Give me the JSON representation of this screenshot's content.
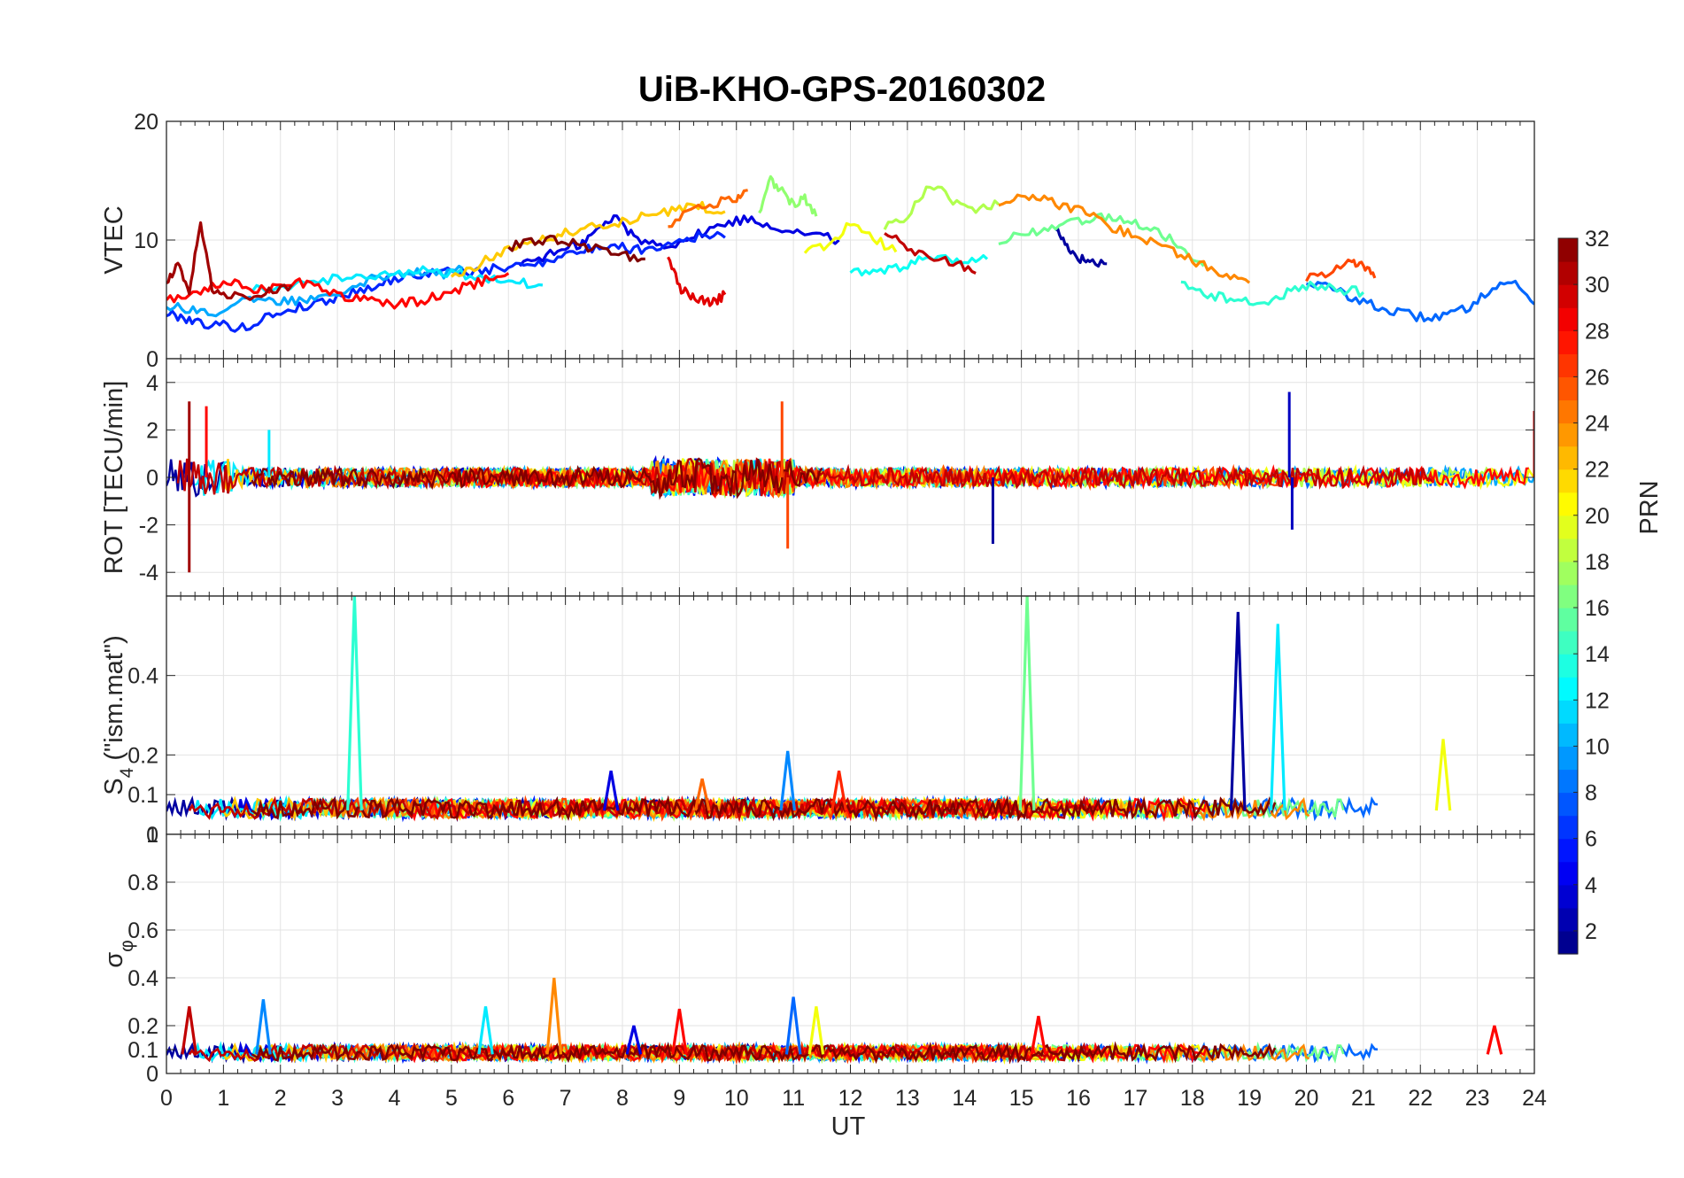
{
  "chart_data": {
    "type": "line",
    "title": "UiB-KHO-GPS-20160302",
    "x": {
      "label": "UT",
      "range": [
        0,
        24
      ],
      "ticks": [
        0,
        1,
        2,
        3,
        4,
        5,
        6,
        7,
        8,
        9,
        10,
        11,
        12,
        13,
        14,
        15,
        16,
        17,
        18,
        19,
        20,
        21,
        22,
        23,
        24
      ]
    },
    "panels": [
      {
        "name": "vtec",
        "ylabel": "VTEC",
        "ylim": [
          0,
          20
        ],
        "yticks": [
          0,
          10,
          20
        ],
        "grid": true,
        "series": [
          {
            "prn": 2,
            "x": [
              15.6,
              15.8,
              16.0,
              16.2,
              16.5
            ],
            "y": [
              11,
              9.5,
              8.5,
              8.2,
              8.0
            ]
          },
          {
            "prn": 4,
            "x": [
              6.2,
              6.6,
              7.0,
              7.3,
              7.6,
              7.9,
              8.2,
              8.6,
              9.0,
              9.4,
              9.8,
              10.2,
              10.6,
              11.0,
              11.4,
              11.8
            ],
            "y": [
              8.0,
              8.6,
              9.2,
              9.8,
              11.0,
              12.0,
              10.2,
              9.6,
              9.8,
              10.6,
              11.4,
              11.8,
              11.2,
              10.8,
              10.4,
              10.0
            ]
          },
          {
            "prn": 6,
            "x": [
              0.0,
              0.3,
              0.6,
              1.0,
              1.4,
              1.8,
              2.2,
              2.6,
              3.0,
              3.4,
              3.8,
              4.2,
              4.6,
              5.0,
              5.4,
              5.8,
              6.2,
              6.6,
              7.0,
              7.4,
              7.8,
              8.2,
              8.6,
              9.0,
              9.4,
              9.8
            ],
            "y": [
              3.8,
              3.5,
              3.0,
              2.8,
              2.6,
              3.6,
              4.2,
              4.6,
              5.2,
              5.8,
              6.4,
              7.0,
              7.2,
              7.4,
              7.2,
              7.6,
              7.8,
              8.2,
              8.8,
              9.2,
              9.6,
              9.2,
              9.4,
              10.0,
              10.4,
              10.2
            ]
          },
          {
            "prn": 8,
            "x": [
              20.0,
              20.4,
              20.8,
              21.2,
              21.6,
              22.0,
              22.4,
              22.8,
              23.2,
              23.6,
              24.0
            ],
            "y": [
              6.5,
              6.0,
              5.2,
              4.4,
              3.9,
              3.5,
              3.6,
              4.2,
              5.8,
              6.6,
              4.6
            ]
          },
          {
            "prn": 10,
            "x": [
              0.0,
              0.4,
              0.8,
              1.2,
              1.6,
              2.0,
              2.4,
              2.8,
              3.2,
              3.6,
              4.0,
              4.4,
              4.8,
              5.2
            ],
            "y": [
              4.5,
              4.2,
              3.8,
              4.6,
              5.0,
              4.8,
              5.0,
              5.4,
              6.0,
              6.8,
              7.2,
              7.4,
              7.0,
              7.6
            ]
          },
          {
            "prn": 12,
            "x": [
              1.5,
              2.0,
              2.5,
              3.0,
              3.5,
              4.0,
              4.5,
              5.0,
              5.5,
              5.8,
              6.2,
              6.6
            ],
            "y": [
              5.8,
              6.2,
              6.4,
              6.8,
              7.0,
              7.2,
              7.4,
              7.2,
              7.0,
              6.6,
              6.4,
              6.2
            ]
          },
          {
            "prn": 13,
            "x": [
              12.0,
              12.4,
              12.8,
              13.2,
              13.6,
              14.0,
              14.4
            ],
            "y": [
              7.4,
              7.2,
              7.6,
              8.2,
              8.4,
              8.0,
              8.4
            ]
          },
          {
            "prn": 14,
            "x": [
              17.8,
              18.2,
              18.6,
              19.0,
              19.4,
              19.8,
              20.2,
              20.6,
              21.0
            ],
            "y": [
              6.6,
              5.6,
              5.0,
              4.8,
              5.0,
              5.8,
              6.2,
              5.8,
              5.6
            ]
          },
          {
            "prn": 16,
            "x": [
              14.6,
              15.0,
              15.4,
              15.8,
              16.2,
              16.6,
              17.0,
              17.4,
              17.8,
              18.2
            ],
            "y": [
              9.8,
              10.4,
              11.0,
              11.6,
              11.8,
              12.0,
              11.6,
              10.6,
              9.6,
              7.8
            ]
          },
          {
            "prn": 17,
            "x": [
              10.4,
              10.6,
              10.8,
              11.0,
              11.2,
              11.4
            ],
            "y": [
              12.4,
              15.0,
              14.2,
              13.0,
              13.6,
              12.0
            ]
          },
          {
            "prn": 18,
            "x": [
              12.6,
              13.0,
              13.4,
              13.8,
              14.2,
              14.6
            ],
            "y": [
              11.0,
              12.0,
              14.8,
              13.4,
              12.4,
              13.0
            ]
          },
          {
            "prn": 20,
            "x": [
              11.2,
              11.6,
              12.0,
              12.4,
              12.8
            ],
            "y": [
              9.0,
              9.4,
              11.4,
              10.2,
              9.0
            ]
          },
          {
            "prn": 22,
            "x": [
              5.0,
              5.4,
              5.8,
              6.2,
              6.6,
              7.0,
              7.4,
              7.8,
              8.2,
              8.6,
              9.0,
              9.4,
              9.8
            ],
            "y": [
              7.0,
              7.8,
              8.8,
              9.6,
              10.2,
              10.6,
              11.0,
              11.4,
              11.8,
              12.2,
              12.6,
              12.8,
              12.4
            ]
          },
          {
            "prn": 24,
            "x": [
              14.6,
              15.0,
              15.4,
              15.8,
              16.2,
              16.6,
              17.0,
              17.4,
              17.8,
              18.2,
              18.6,
              19.0
            ],
            "y": [
              13.0,
              13.8,
              13.4,
              12.8,
              12.2,
              11.0,
              10.4,
              9.6,
              8.8,
              7.8,
              6.8,
              6.4
            ]
          },
          {
            "prn": 25,
            "x": [
              8.8,
              9.2,
              9.6,
              10.0,
              10.2
            ],
            "y": [
              11.2,
              12.4,
              13.0,
              13.6,
              14.2
            ]
          },
          {
            "prn": 26,
            "x": [
              20.0,
              20.4,
              20.8,
              21.0,
              21.2
            ],
            "y": [
              6.6,
              7.4,
              8.2,
              8.0,
              6.8
            ]
          },
          {
            "prn": 28,
            "x": [
              0.0,
              0.4,
              0.8,
              1.2,
              1.6,
              2.0,
              2.4,
              2.8,
              3.2,
              3.6,
              4.0,
              4.4,
              4.8,
              5.2,
              5.6,
              6.0
            ],
            "y": [
              5.0,
              5.4,
              6.2,
              6.6,
              5.8,
              6.0,
              6.4,
              5.6,
              5.2,
              5.0,
              4.6,
              4.8,
              5.4,
              6.0,
              6.6,
              7.2
            ]
          },
          {
            "prn": 29,
            "x": [
              8.8,
              9.0,
              9.2,
              9.4,
              9.6,
              9.8
            ],
            "y": [
              8.6,
              6.0,
              5.4,
              5.0,
              4.8,
              5.4
            ]
          },
          {
            "prn": 30,
            "x": [
              12.6,
              13.0,
              13.4,
              13.8,
              14.2
            ],
            "y": [
              10.6,
              9.4,
              8.6,
              8.2,
              7.2
            ]
          },
          {
            "prn": 31,
            "x": [
              0.0,
              0.2,
              0.4,
              0.6,
              0.8,
              1.0,
              1.4,
              1.8,
              2.2
            ],
            "y": [
              6.4,
              8.0,
              5.4,
              11.6,
              6.0,
              5.6,
              5.0,
              5.8,
              6.2
            ]
          },
          {
            "prn": 32,
            "x": [
              6.0,
              6.4,
              6.8,
              7.2,
              7.6,
              8.0,
              8.4
            ],
            "y": [
              9.4,
              9.8,
              10.0,
              9.6,
              9.2,
              8.8,
              8.4
            ]
          }
        ]
      },
      {
        "name": "rot",
        "ylabel": "ROT [TECU/min]",
        "ylim": [
          -5,
          5
        ],
        "yticks": [
          -4,
          -2,
          0,
          2,
          4
        ],
        "grid": true,
        "note": "noisy scatter around 0 with spikes",
        "spikes": [
          {
            "prn": 31,
            "x": 0.4,
            "y": 3.2
          },
          {
            "prn": 31,
            "x": 0.4,
            "y": -4.0
          },
          {
            "prn": 28,
            "x": 0.7,
            "y": 3.0
          },
          {
            "prn": 12,
            "x": 1.8,
            "y": 2.0
          },
          {
            "prn": 26,
            "x": 10.8,
            "y": 3.2
          },
          {
            "prn": 26,
            "x": 10.9,
            "y": -3.0
          },
          {
            "prn": 3,
            "x": 19.7,
            "y": 3.6
          },
          {
            "prn": 3,
            "x": 19.75,
            "y": -2.2
          },
          {
            "prn": 2,
            "x": 14.5,
            "y": -2.8
          },
          {
            "prn": 30,
            "x": 24.0,
            "y": 2.8
          }
        ]
      },
      {
        "name": "s4",
        "ylabel": "S4 (\"ism.mat\")",
        "ylim": [
          0,
          0.6
        ],
        "yticks": [
          0,
          0.1,
          0.2,
          0.4
        ],
        "grid": true,
        "baseline": 0.06,
        "spikes": [
          {
            "prn": 14,
            "x": 3.3,
            "y": 0.6
          },
          {
            "prn": 16,
            "x": 15.1,
            "y": 0.6
          },
          {
            "prn": 2,
            "x": 18.8,
            "y": 0.56
          },
          {
            "prn": 12,
            "x": 19.5,
            "y": 0.53
          },
          {
            "prn": 9,
            "x": 10.9,
            "y": 0.21
          },
          {
            "prn": 4,
            "x": 7.8,
            "y": 0.16
          },
          {
            "prn": 20,
            "x": 22.4,
            "y": 0.24
          },
          {
            "prn": 27,
            "x": 11.8,
            "y": 0.16
          },
          {
            "prn": 25,
            "x": 9.4,
            "y": 0.14
          }
        ]
      },
      {
        "name": "sigma_phi",
        "ylabel": "σ",
        "ylabel_sub": "φ",
        "ylim": [
          0,
          1
        ],
        "yticks": [
          0,
          0.1,
          0.2,
          0.4,
          0.6,
          0.8,
          1
        ],
        "grid": true,
        "baseline": 0.08,
        "spikes": [
          {
            "prn": 24,
            "x": 6.8,
            "y": 0.4
          },
          {
            "prn": 12,
            "x": 5.6,
            "y": 0.28
          },
          {
            "prn": 8,
            "x": 11.0,
            "y": 0.32
          },
          {
            "prn": 20,
            "x": 11.4,
            "y": 0.28
          },
          {
            "prn": 9,
            "x": 1.7,
            "y": 0.31
          },
          {
            "prn": 30,
            "x": 0.4,
            "y": 0.28
          },
          {
            "prn": 28,
            "x": 9.0,
            "y": 0.27
          },
          {
            "prn": 4,
            "x": 8.2,
            "y": 0.2
          },
          {
            "prn": 28,
            "x": 15.3,
            "y": 0.24
          },
          {
            "prn": 28,
            "x": 23.3,
            "y": 0.2
          }
        ]
      }
    ],
    "colorbar": {
      "label": "PRN",
      "range": [
        1,
        32
      ],
      "ticks": [
        2,
        4,
        6,
        8,
        10,
        12,
        14,
        16,
        18,
        20,
        22,
        24,
        26,
        28,
        30,
        32
      ],
      "colormap": "jet"
    }
  }
}
